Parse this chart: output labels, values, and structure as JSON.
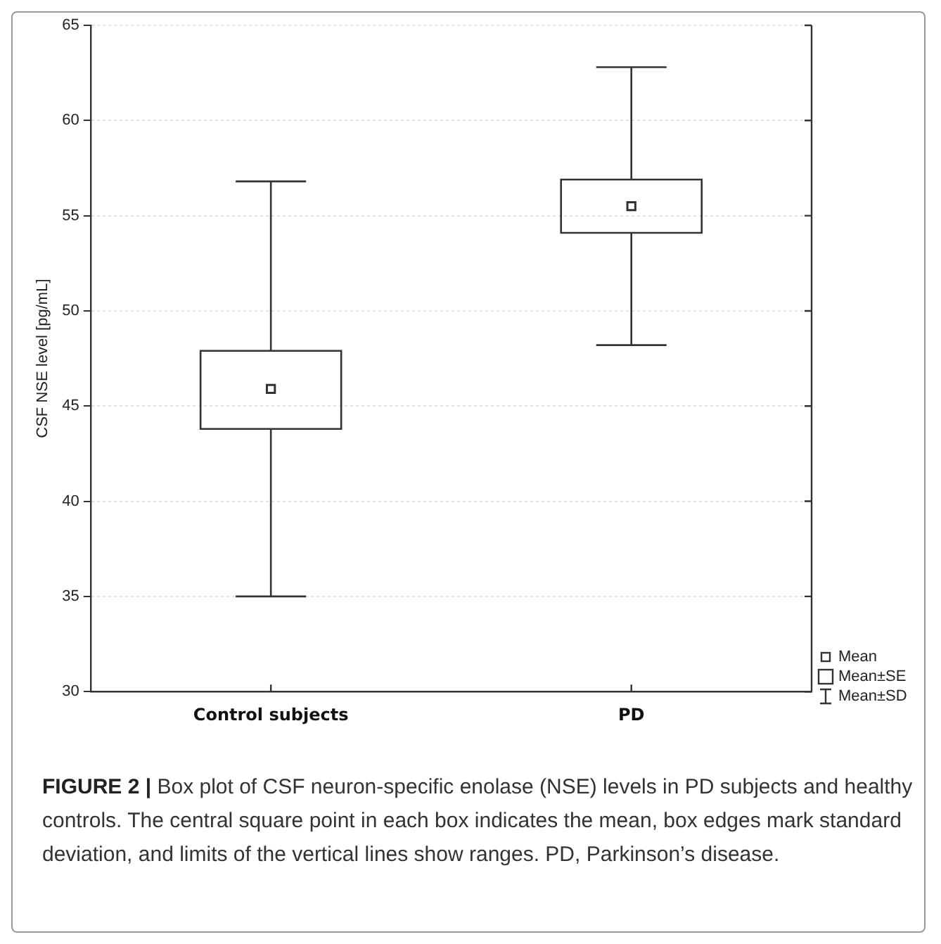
{
  "chart_data": {
    "type": "box",
    "title": "FIGURE 2 |",
    "ylabel": "CSF NSE level [pg/mL]",
    "categories": [
      "Control subjects",
      "PD"
    ],
    "boxes": [
      {
        "low": 35.0,
        "q1": 43.8,
        "mean": 45.9,
        "q3": 47.9,
        "high": 56.8
      },
      {
        "low": 48.2,
        "q1": 54.1,
        "mean": 55.5,
        "q3": 56.9,
        "high": 62.8
      }
    ],
    "color": "#333333",
    "marker": "square",
    "ylim": [
      30,
      65
    ],
    "yticks": [
      30,
      35,
      40,
      45,
      50,
      55,
      60,
      65
    ],
    "grid": "y",
    "annotations": [
      "Mean",
      "Mean±SE",
      "Mean±SD",
      "Box plot of CSF neuron-specific enolase (NSE) levels in PD subjects and healthy controls. The central square point in each box indicates the mean, box edges mark standard deviation, and limits of the vertical lines show ranges. PD, Parkinson’s disease."
    ]
  }
}
